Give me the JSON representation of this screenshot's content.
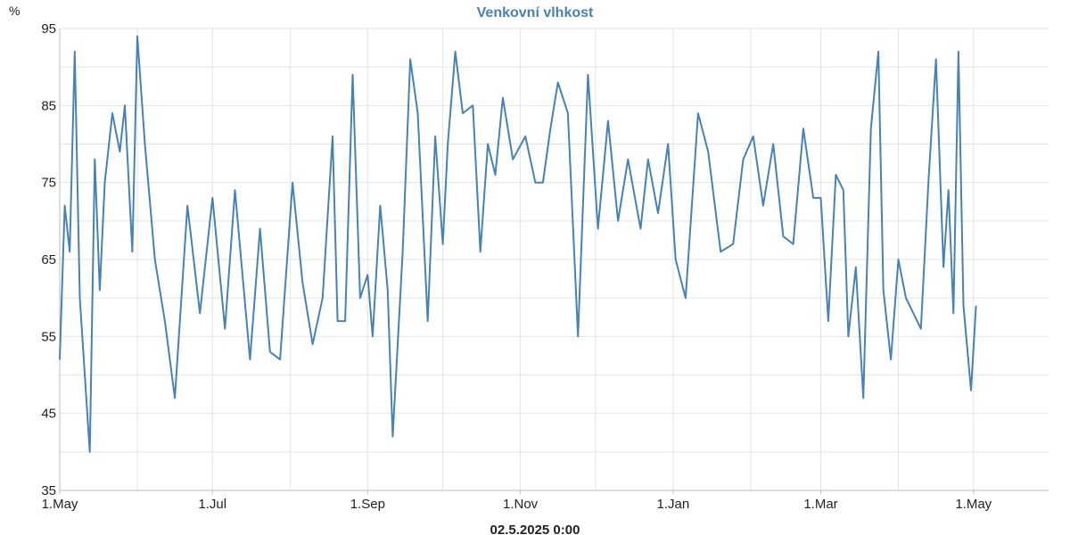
{
  "chart_data": {
    "type": "line",
    "title": "Venkovní vlhkost",
    "ylabel": "%",
    "xlabel": "02.5.2025 0:00",
    "ylim": [
      35,
      95
    ],
    "xlim": [
      "2024-05-01",
      "2025-05-31"
    ],
    "yticks": [
      "35",
      "45",
      "55",
      "65",
      "75",
      "85",
      "95"
    ],
    "xticks": [
      {
        "date": "2024-05-01",
        "label": "1.May"
      },
      {
        "date": "2024-07-01",
        "label": "1.Jul"
      },
      {
        "date": "2024-09-01",
        "label": "1.Sep"
      },
      {
        "date": "2024-11-01",
        "label": "1.Nov"
      },
      {
        "date": "2025-01-01",
        "label": "1.Jan"
      },
      {
        "date": "2025-03-01",
        "label": "1.Mar"
      },
      {
        "date": "2025-05-01",
        "label": "1.May"
      }
    ],
    "grid": true,
    "line_color": "#4682b4",
    "series": [
      {
        "x": [
          "2024-05-01",
          "2024-05-03",
          "2024-05-05",
          "2024-05-07",
          "2024-05-09",
          "2024-05-13",
          "2024-05-15",
          "2024-05-17",
          "2024-05-19",
          "2024-05-22",
          "2024-05-25",
          "2024-05-27",
          "2024-05-30",
          "2024-06-01",
          "2024-06-04",
          "2024-06-08",
          "2024-06-12",
          "2024-06-16",
          "2024-06-21",
          "2024-06-26",
          "2024-07-01",
          "2024-07-06",
          "2024-07-10",
          "2024-07-16",
          "2024-07-20",
          "2024-07-24",
          "2024-07-28",
          "2024-08-02",
          "2024-08-06",
          "2024-08-10",
          "2024-08-14",
          "2024-08-18",
          "2024-08-20",
          "2024-08-23",
          "2024-08-26",
          "2024-08-29",
          "2024-09-01",
          "2024-09-03",
          "2024-09-06",
          "2024-09-09",
          "2024-09-11",
          "2024-09-15",
          "2024-09-18",
          "2024-09-21",
          "2024-09-25",
          "2024-09-28",
          "2024-10-01",
          "2024-10-03",
          "2024-10-06",
          "2024-10-09",
          "2024-10-13",
          "2024-10-16",
          "2024-10-19",
          "2024-10-22",
          "2024-10-25",
          "2024-10-29",
          "2024-11-03",
          "2024-11-07",
          "2024-11-10",
          "2024-11-13",
          "2024-11-16",
          "2024-11-20",
          "2024-11-24",
          "2024-11-28",
          "2024-12-02",
          "2024-12-06",
          "2024-12-10",
          "2024-12-14",
          "2024-12-19",
          "2024-12-22",
          "2024-12-26",
          "2024-12-30",
          "2025-01-02",
          "2025-01-06",
          "2025-01-11",
          "2025-01-15",
          "2025-01-20",
          "2025-01-25",
          "2025-01-29",
          "2025-02-02",
          "2025-02-06",
          "2025-02-10",
          "2025-02-14",
          "2025-02-18",
          "2025-02-22",
          "2025-02-26",
          "2025-03-01",
          "2025-03-04",
          "2025-03-07",
          "2025-03-10",
          "2025-03-12",
          "2025-03-15",
          "2025-03-18",
          "2025-03-21",
          "2025-03-24",
          "2025-03-26",
          "2025-03-29",
          "2025-04-01",
          "2025-04-04",
          "2025-04-07",
          "2025-04-10",
          "2025-04-13",
          "2025-04-16",
          "2025-04-19",
          "2025-04-21",
          "2025-04-23",
          "2025-04-25",
          "2025-04-27",
          "2025-04-30",
          "2025-05-02"
        ],
        "values": [
          52,
          72,
          66,
          92,
          60,
          40,
          78,
          61,
          75,
          84,
          79,
          85,
          66,
          94,
          80,
          65,
          57,
          47,
          72,
          58,
          73,
          56,
          74,
          52,
          69,
          53,
          52,
          75,
          62,
          54,
          60,
          81,
          57,
          57,
          89,
          60,
          63,
          55,
          72,
          61,
          42,
          66,
          91,
          84,
          57,
          81,
          67,
          80,
          92,
          84,
          85,
          66,
          80,
          76,
          86,
          78,
          81,
          75,
          75,
          82,
          88,
          84,
          55,
          89,
          69,
          83,
          70,
          78,
          69,
          78,
          71,
          80,
          65,
          60,
          84,
          79,
          66,
          67,
          78,
          81,
          72,
          80,
          68,
          67,
          82,
          73,
          73,
          57,
          76,
          74,
          55,
          64,
          47,
          82,
          92,
          61,
          52,
          65,
          60,
          58,
          56,
          75,
          91,
          64,
          74,
          58,
          92,
          59,
          48,
          59
        ]
      }
    ]
  }
}
